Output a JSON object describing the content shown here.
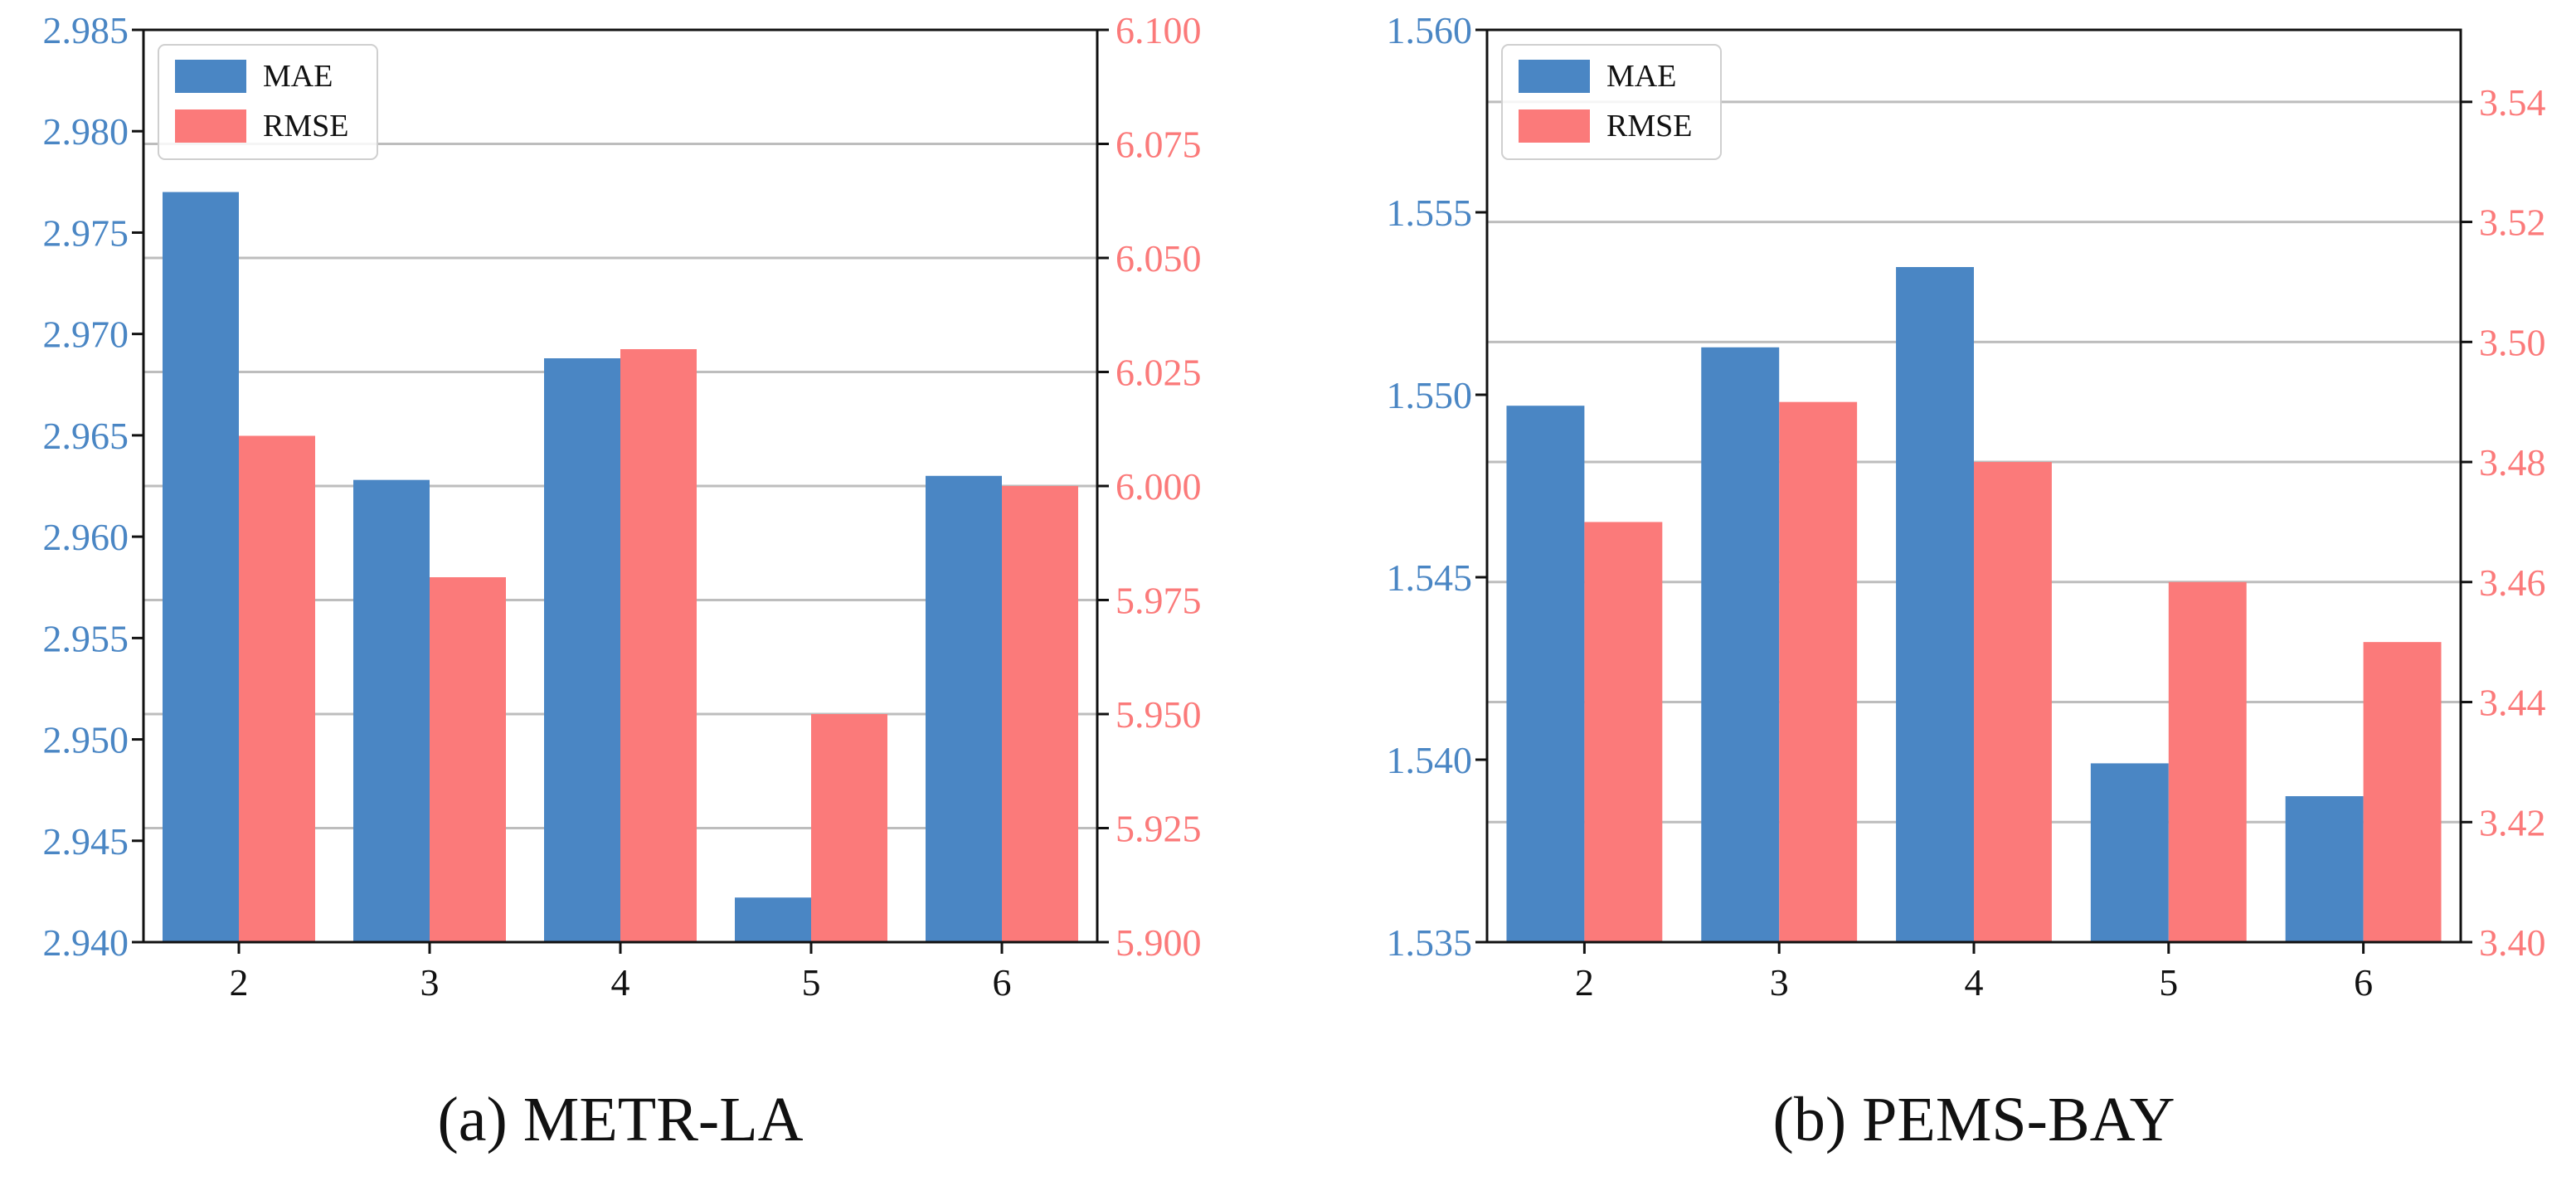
{
  "chart_data": [
    {
      "type": "bar",
      "caption": "(a)  METR-LA",
      "categories": [
        "2",
        "3",
        "4",
        "5",
        "6"
      ],
      "series": [
        {
          "name": "MAE",
          "axis": "left",
          "color": "#4a86c4",
          "values": [
            2.977,
            2.9628,
            2.9688,
            2.9422,
            2.963
          ]
        },
        {
          "name": "RMSE",
          "axis": "right",
          "color": "#fb7a7a",
          "values": [
            6.011,
            5.98,
            6.03,
            5.95,
            6.0
          ]
        }
      ],
      "left_axis": {
        "ylim": [
          2.94,
          2.985
        ],
        "ticks": [
          "2.940",
          "2.945",
          "2.950",
          "2.955",
          "2.960",
          "2.965",
          "2.970",
          "2.975",
          "2.980",
          "2.985"
        ]
      },
      "right_axis": {
        "ylim": [
          5.9,
          6.1
        ],
        "ticks": [
          "5.900",
          "5.925",
          "5.950",
          "5.975",
          "6.000",
          "6.025",
          "6.050",
          "6.075",
          "6.100"
        ]
      },
      "grid": true,
      "legend_position": "top-left"
    },
    {
      "type": "bar",
      "caption": "(b)  PEMS-BAY",
      "categories": [
        "2",
        "3",
        "4",
        "5",
        "6"
      ],
      "series": [
        {
          "name": "MAE",
          "axis": "left",
          "color": "#4a86c4",
          "values": [
            1.5497,
            1.5513,
            1.5535,
            1.5399,
            1.539
          ]
        },
        {
          "name": "RMSE",
          "axis": "right",
          "color": "#fb7a7a",
          "values": [
            3.47,
            3.49,
            3.48,
            3.46,
            3.45
          ]
        }
      ],
      "left_axis": {
        "ylim": [
          1.535,
          1.56
        ],
        "ticks": [
          "1.535",
          "1.540",
          "1.545",
          "1.550",
          "1.555",
          "1.560"
        ]
      },
      "right_axis": {
        "ylim": [
          3.4,
          3.552
        ],
        "ticks": [
          "3.40",
          "3.42",
          "3.44",
          "3.46",
          "3.48",
          "3.50",
          "3.52",
          "3.54"
        ]
      },
      "grid": true,
      "legend_position": "top-left"
    }
  ]
}
